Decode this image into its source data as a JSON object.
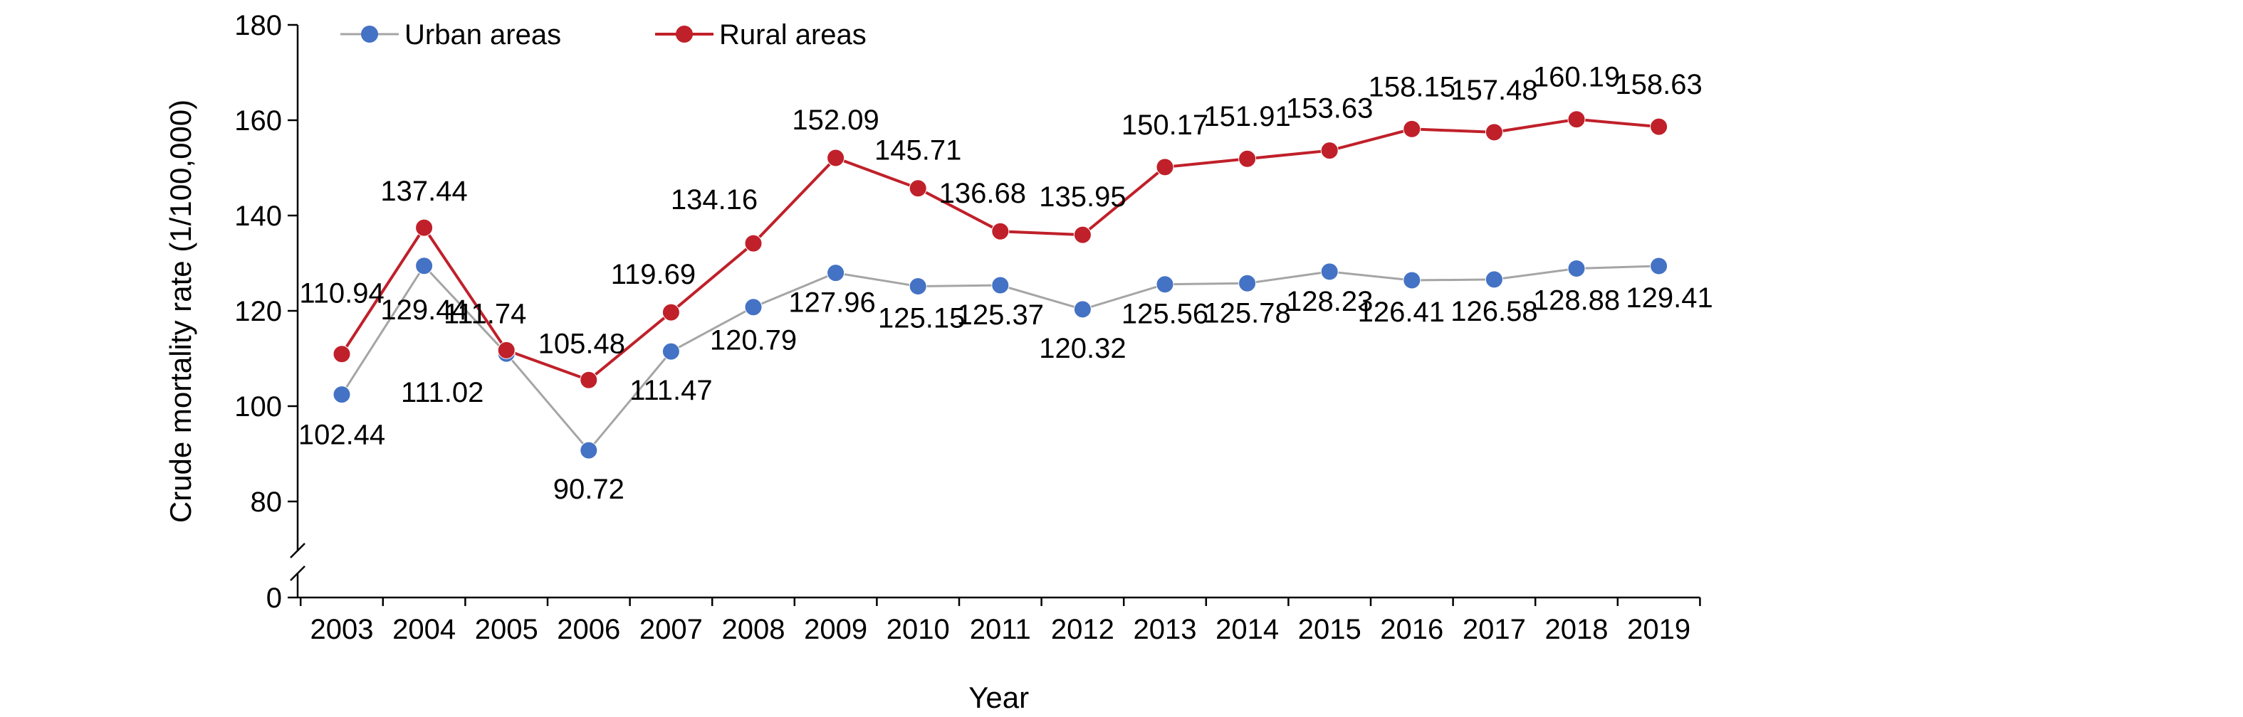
{
  "chart_data": {
    "type": "line",
    "xlabel": "Year",
    "ylabel": "Crude mortality rate (1/100,000)",
    "categories": [
      "2003",
      "2004",
      "2005",
      "2006",
      "2007",
      "2008",
      "2009",
      "2010",
      "2011",
      "2012",
      "2013",
      "2014",
      "2015",
      "2016",
      "2017",
      "2018",
      "2019"
    ],
    "y_ticks": [
      0,
      80,
      100,
      120,
      140,
      160,
      180
    ],
    "ylim": [
      0,
      180
    ],
    "axis_break": [
      0,
      80
    ],
    "grid": false,
    "legend_position": "top-left",
    "series": [
      {
        "name": "Urban areas",
        "color": "#4472C4",
        "line_color": "#A5A5A5",
        "values": [
          102.44,
          129.44,
          111.02,
          90.72,
          111.47,
          120.79,
          127.96,
          125.15,
          125.37,
          120.32,
          125.56,
          125.78,
          128.23,
          126.41,
          126.58,
          128.88,
          129.41
        ]
      },
      {
        "name": "Rural areas",
        "color": "#C0202A",
        "line_color": "#C0202A",
        "values": [
          110.94,
          137.44,
          111.74,
          105.48,
          119.69,
          134.16,
          152.09,
          145.71,
          136.68,
          135.95,
          150.17,
          151.91,
          153.63,
          158.15,
          157.48,
          160.19,
          158.63
        ]
      }
    ]
  }
}
